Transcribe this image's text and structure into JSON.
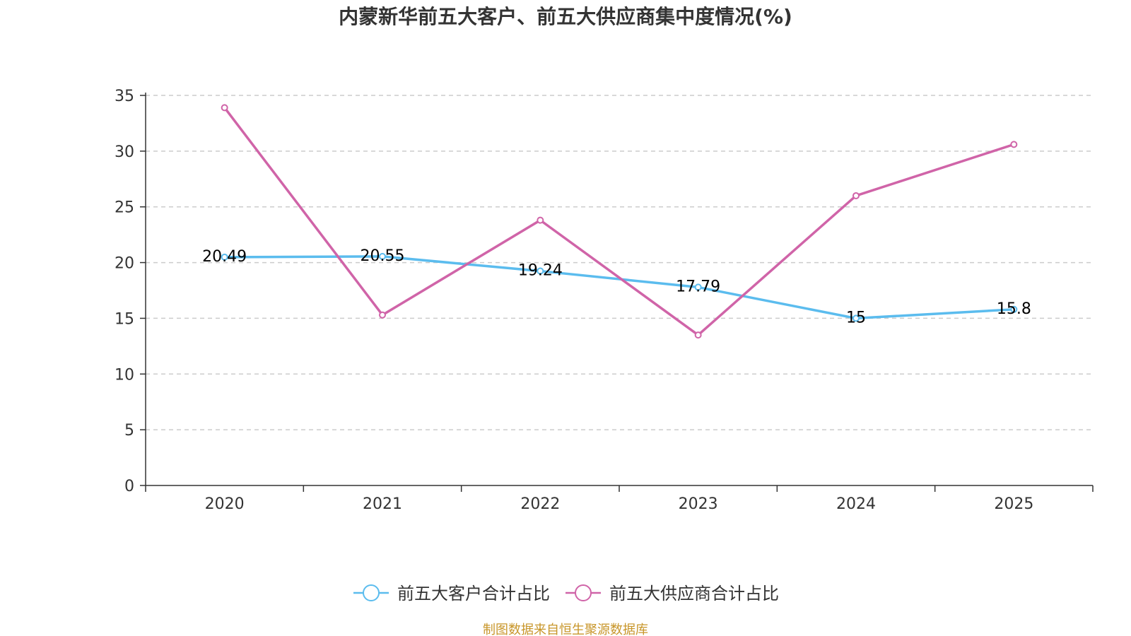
{
  "chart_data": {
    "type": "line",
    "title": "内蒙新华前五大客户、前五大供应商集中度情况(%)",
    "xlabel": "",
    "ylabel": "",
    "categories": [
      "2020",
      "2021",
      "2022",
      "2023",
      "2024",
      "2025"
    ],
    "ylim": [
      0,
      35
    ],
    "yticks": [
      "0",
      "5",
      "10",
      "15",
      "20",
      "25",
      "30",
      "35"
    ],
    "grid": true,
    "legend_position": "bottom-center",
    "series": [
      {
        "name": "前五大客户合计占比",
        "color": "#5bbcee",
        "values": [
          20.49,
          20.55,
          19.24,
          17.79,
          15,
          15.8
        ],
        "labels": [
          "20.49",
          "20.55",
          "19.24",
          "17.79",
          "15",
          "15.8"
        ],
        "show_labels": true
      },
      {
        "name": "前五大供应商合计占比",
        "color": "#d064a8",
        "values": [
          33.9,
          15.3,
          23.8,
          13.5,
          26.0,
          30.6
        ],
        "show_labels": false
      }
    ],
    "source": "制图数据来自恒生聚源数据库",
    "source_color": "#c8962a"
  }
}
